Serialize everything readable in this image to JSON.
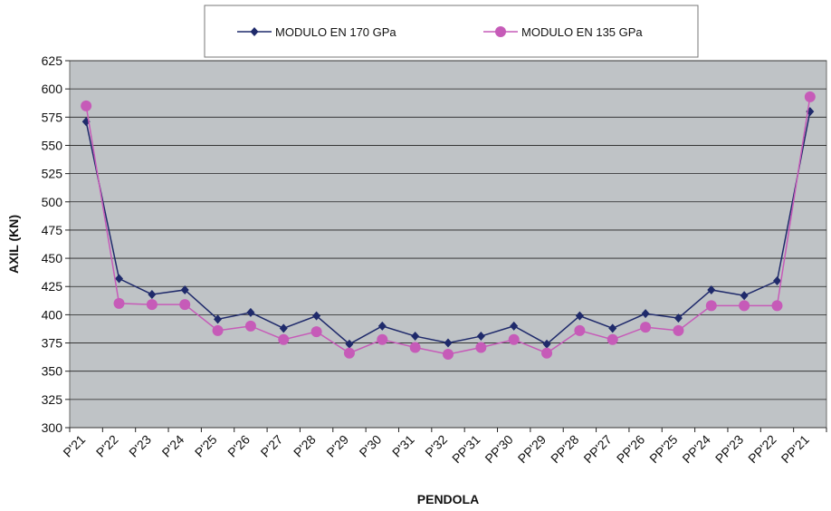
{
  "chart_data": {
    "type": "line",
    "xlabel": "PENDOLA",
    "ylabel": "AXIL (KN)",
    "ylim": [
      300,
      625
    ],
    "ytick_step": 25,
    "grid": "horizontal",
    "legend_position": "top-center",
    "plot_background": "#BFC3C6",
    "categories": [
      "P'21",
      "P'22",
      "P'23",
      "P'24",
      "P'25",
      "P'26",
      "P'27",
      "P'28",
      "P'29",
      "P'30",
      "P'31",
      "P'32",
      "PP'31",
      "PP'30",
      "PP'29",
      "PP'28",
      "PP'27",
      "PP'26",
      "PP'25",
      "PP'24",
      "PP'23",
      "PP'22",
      "PP'21"
    ],
    "series": [
      {
        "name": "MODULO EN 170 GPa",
        "color": "#1F2A6B",
        "marker": "diamond",
        "values": [
          571,
          432,
          418,
          422,
          396,
          402,
          388,
          399,
          374,
          390,
          381,
          375,
          381,
          390,
          374,
          399,
          388,
          401,
          397,
          422,
          417,
          430,
          580
        ]
      },
      {
        "name": "MODULO EN 135 GPa",
        "color": "#C65BB8",
        "marker": "circle",
        "values": [
          585,
          410,
          409,
          409,
          386,
          390,
          378,
          385,
          366,
          378,
          371,
          365,
          371,
          378,
          366,
          386,
          378,
          389,
          386,
          408,
          408,
          408,
          593
        ]
      }
    ]
  }
}
